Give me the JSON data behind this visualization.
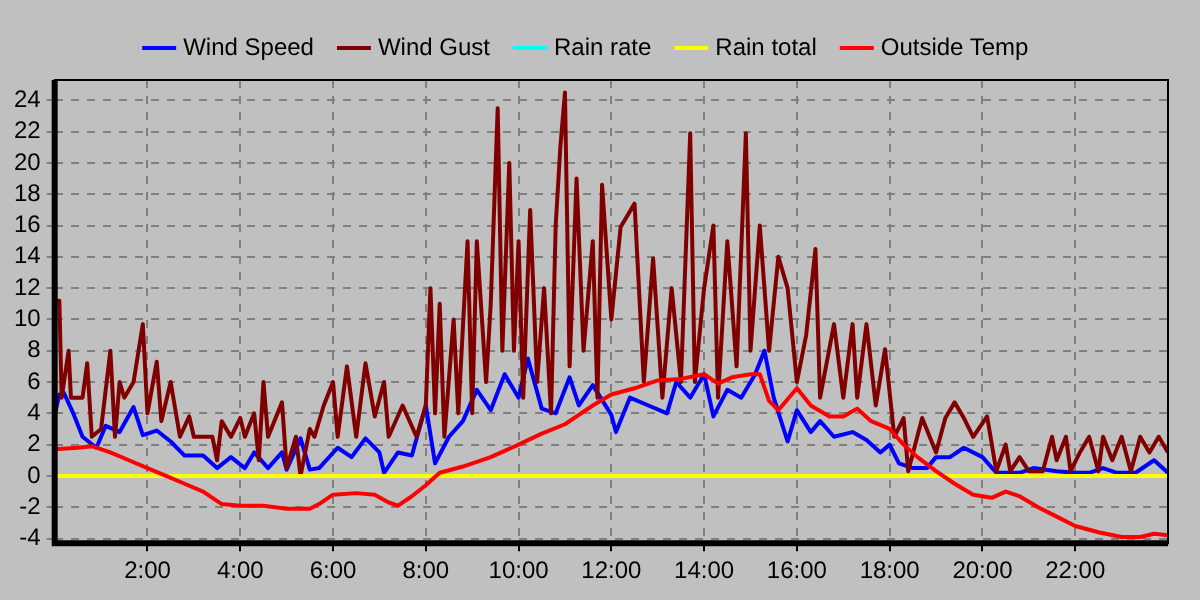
{
  "chart_data": {
    "type": "line",
    "xlim": [
      0,
      24
    ],
    "ylim": [
      -4.3,
      25.3
    ],
    "xticks": [
      {
        "value": 2,
        "label": "2:00"
      },
      {
        "value": 4,
        "label": "4:00"
      },
      {
        "value": 6,
        "label": "6:00"
      },
      {
        "value": 8,
        "label": "8:00"
      },
      {
        "value": 10,
        "label": "10:00"
      },
      {
        "value": 12,
        "label": "12:00"
      },
      {
        "value": 14,
        "label": "14:00"
      },
      {
        "value": 16,
        "label": "16:00"
      },
      {
        "value": 18,
        "label": "18:00"
      },
      {
        "value": 20,
        "label": "20:00"
      },
      {
        "value": 22,
        "label": "22:00"
      }
    ],
    "yticks": [
      -4,
      -2,
      0,
      2,
      4,
      6,
      8,
      10,
      12,
      14,
      16,
      18,
      20,
      22,
      24
    ],
    "grid": true,
    "legend": "top",
    "marker": "none",
    "line_style": "solid",
    "series": [
      {
        "name": "Wind Speed",
        "color": "#0000ff",
        "x": [
          0,
          0.1,
          0.2,
          0.4,
          0.6,
          0.9,
          1.1,
          1.4,
          1.7,
          1.9,
          2.2,
          2.5,
          2.8,
          3.2,
          3.5,
          3.8,
          4.1,
          4.3,
          4.6,
          4.9,
          5.0,
          5.3,
          5.5,
          5.7,
          6.1,
          6.4,
          6.7,
          7.0,
          7.1,
          7.4,
          7.7,
          8.0,
          8.2,
          8.5,
          8.8,
          9.1,
          9.4,
          9.7,
          10.0,
          10.2,
          10.5,
          10.8,
          11.1,
          11.3,
          11.6,
          12.0,
          12.1,
          12.4,
          12.8,
          13.2,
          13.4,
          13.7,
          14.0,
          14.2,
          14.5,
          14.8,
          15.1,
          15.3,
          15.5,
          15.8,
          16.0,
          16.3,
          16.5,
          16.8,
          17.2,
          17.5,
          17.8,
          18.0,
          18.2,
          18.5,
          18.8,
          19.0,
          19.3,
          19.6,
          20.0,
          20.3,
          20.8,
          21.1,
          21.6,
          22.0,
          22.3,
          22.6,
          22.9,
          23.3,
          23.7,
          24
        ],
        "values": [
          3.9,
          5.2,
          5.3,
          4.0,
          2.5,
          1.8,
          3.2,
          2.8,
          4.4,
          2.6,
          2.9,
          2.2,
          1.3,
          1.3,
          0.5,
          1.2,
          0.5,
          1.5,
          0.5,
          1.5,
          0.4,
          2.4,
          0.4,
          0.5,
          1.8,
          1.2,
          2.4,
          1.5,
          0.2,
          1.5,
          1.3,
          4.5,
          0.8,
          2.5,
          3.5,
          5.5,
          4.2,
          6.5,
          5.0,
          7.5,
          4.3,
          4.0,
          6.3,
          4.5,
          5.8,
          3.9,
          2.8,
          5.0,
          4.5,
          4.0,
          6.0,
          5.0,
          6.5,
          3.8,
          5.5,
          5.0,
          6.5,
          8.0,
          5.0,
          2.2,
          4.2,
          2.8,
          3.5,
          2.5,
          2.8,
          2.3,
          1.5,
          2.0,
          0.8,
          0.5,
          0.5,
          1.2,
          1.2,
          1.8,
          1.2,
          0.2,
          0.2,
          0.5,
          0.3,
          0.2,
          0.2,
          0.5,
          0.2,
          0.2,
          1.0,
          0.2
        ]
      },
      {
        "name": "Wind Gust",
        "color": "#800000",
        "x": [
          0,
          0.1,
          0.15,
          0.3,
          0.35,
          0.6,
          0.7,
          0.8,
          1.0,
          1.2,
          1.3,
          1.4,
          1.5,
          1.7,
          1.9,
          2.0,
          2.2,
          2.3,
          2.5,
          2.7,
          2.9,
          3.0,
          3.4,
          3.5,
          3.6,
          3.8,
          4.0,
          4.1,
          4.3,
          4.4,
          4.5,
          4.6,
          4.9,
          5.0,
          5.2,
          5.3,
          5.5,
          5.6,
          5.8,
          6.0,
          6.1,
          6.3,
          6.5,
          6.7,
          6.9,
          7.1,
          7.2,
          7.5,
          7.8,
          8.0,
          8.1,
          8.2,
          8.3,
          8.4,
          8.6,
          8.7,
          8.9,
          9.0,
          9.1,
          9.3,
          9.4,
          9.55,
          9.65,
          9.8,
          9.9,
          10.0,
          10.1,
          10.25,
          10.4,
          10.55,
          10.7,
          10.8,
          10.9,
          11.0,
          11.1,
          11.25,
          11.4,
          11.6,
          11.7,
          11.8,
          12.0,
          12.2,
          12.5,
          12.7,
          12.9,
          13.1,
          13.3,
          13.5,
          13.7,
          13.8,
          14.0,
          14.2,
          14.3,
          14.5,
          14.7,
          14.9,
          15.0,
          15.2,
          15.4,
          15.6,
          15.8,
          16.0,
          16.2,
          16.4,
          16.5,
          16.8,
          17.0,
          17.2,
          17.3,
          17.5,
          17.7,
          17.9,
          18.1,
          18.3,
          18.4,
          18.7,
          19.0,
          19.2,
          19.4,
          19.6,
          19.8,
          20.1,
          20.3,
          20.5,
          20.6,
          20.8,
          21.0,
          21.3,
          21.5,
          21.6,
          21.8,
          21.9,
          22.1,
          22.3,
          22.5,
          22.6,
          22.8,
          23.0,
          23.2,
          23.4,
          23.6,
          23.8,
          24
        ],
        "values": [
          11.2,
          11.2,
          5.0,
          8.0,
          5.0,
          5.0,
          7.2,
          2.5,
          3.0,
          8.0,
          2.5,
          6.0,
          5.0,
          6.0,
          9.7,
          4.0,
          7.3,
          3.5,
          6.0,
          2.5,
          3.8,
          2.5,
          2.5,
          1.0,
          3.5,
          2.5,
          3.7,
          2.5,
          4.0,
          1.0,
          6.0,
          2.5,
          4.7,
          0.5,
          2.5,
          0,
          3.0,
          2.5,
          4.5,
          6.0,
          2.5,
          7.0,
          2.5,
          7.2,
          3.8,
          6.0,
          2.5,
          4.5,
          2.5,
          4.5,
          12.0,
          4.0,
          11.0,
          2.5,
          10.0,
          4.0,
          15.0,
          4.0,
          15.0,
          6.0,
          11.0,
          23.5,
          8.0,
          20.0,
          8.0,
          15.0,
          5.0,
          17.0,
          6.0,
          12.0,
          4.0,
          16.0,
          21.0,
          24.5,
          7.0,
          19.0,
          8.0,
          15.0,
          5.0,
          18.6,
          10.0,
          15.9,
          17.4,
          6.0,
          13.9,
          5.0,
          12.0,
          6.0,
          21.9,
          6.0,
          12.0,
          16.0,
          5.0,
          15.0,
          7.0,
          21.9,
          8.0,
          16.0,
          8.0,
          14.0,
          12.0,
          6.0,
          9.0,
          14.5,
          5.0,
          9.7,
          5.0,
          9.7,
          5.0,
          9.7,
          4.5,
          8.1,
          2.5,
          3.7,
          0.3,
          3.7,
          1.5,
          3.7,
          4.7,
          3.7,
          2.5,
          3.8,
          0.3,
          2.0,
          0.3,
          1.2,
          0.3,
          0.3,
          2.5,
          1.0,
          2.5,
          0.3,
          1.5,
          2.5,
          0.3,
          2.5,
          1.0,
          2.5,
          0.3,
          2.5,
          1.5,
          2.5,
          1.5
        ]
      },
      {
        "name": "Rain rate",
        "color": "#00ffff"
      },
      {
        "name": "Rain total",
        "color": "#ffff00",
        "x": [
          0,
          24
        ],
        "values": [
          0,
          0
        ]
      },
      {
        "name": "Outside Temp",
        "color": "#ff0000",
        "x": [
          0,
          0.5,
          0.8,
          1.2,
          1.6,
          2.0,
          2.4,
          2.8,
          3.2,
          3.6,
          4.0,
          4.5,
          5.0,
          5.5,
          5.7,
          6.0,
          6.5,
          6.9,
          7.2,
          7.4,
          7.7,
          8.0,
          8.3,
          8.8,
          9.4,
          10.0,
          10.5,
          11.0,
          11.3,
          11.6,
          12.0,
          12.5,
          13.0,
          13.5,
          14.0,
          14.3,
          14.6,
          15.0,
          15.2,
          15.4,
          15.6,
          16.0,
          16.3,
          16.7,
          17.0,
          17.3,
          17.6,
          18.0,
          18.3,
          18.6,
          19.0,
          19.4,
          19.8,
          20.2,
          20.5,
          20.8,
          21.2,
          21.6,
          22.0,
          22.5,
          23.0,
          23.4,
          23.7,
          24
        ],
        "values": [
          1.7,
          1.8,
          1.9,
          1.5,
          1.0,
          0.5,
          0,
          -0.5,
          -1.0,
          -1.8,
          -1.9,
          -1.9,
          -2.1,
          -2.1,
          -1.8,
          -1.2,
          -1.1,
          -1.2,
          -1.7,
          -1.9,
          -1.3,
          -0.6,
          0.2,
          0.6,
          1.2,
          2.0,
          2.7,
          3.3,
          3.9,
          4.5,
          5.2,
          5.6,
          6.1,
          6.2,
          6.5,
          5.9,
          6.3,
          6.5,
          6.5,
          4.8,
          4.2,
          5.6,
          4.5,
          3.8,
          3.8,
          4.3,
          3.5,
          3.0,
          2.0,
          1.2,
          0.3,
          -0.5,
          -1.2,
          -1.4,
          -1.0,
          -1.3,
          -2.0,
          -2.6,
          -3.2,
          -3.6,
          -3.9,
          -3.9,
          -3.7,
          -3.8
        ]
      }
    ]
  }
}
